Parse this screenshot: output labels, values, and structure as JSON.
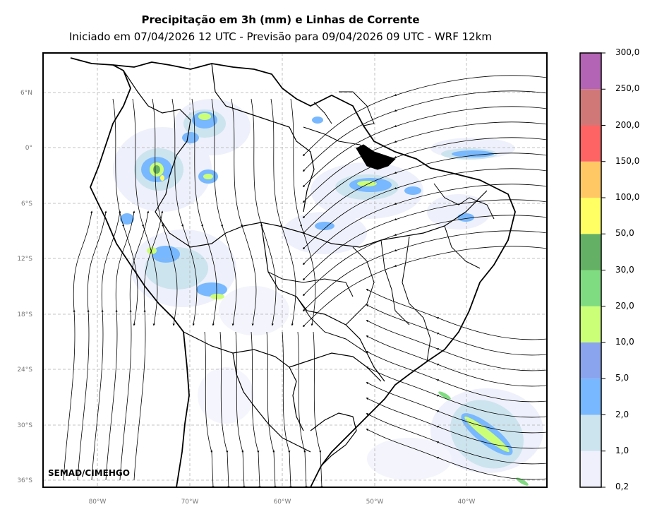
{
  "header": {
    "title": "Precipitação em 3h (mm) e Linhas de Corrente",
    "subtitle": "Iniciado em 07/04/2026 12 UTC - Previsão para 09/04/2026 09 UTC - WRF 12km"
  },
  "map": {
    "lat_labels": [
      "6°N",
      "0°",
      "6°S",
      "12°S",
      "18°S",
      "24°S",
      "30°S",
      "36°S"
    ],
    "lon_labels": [
      "80°W",
      "70°W",
      "60°W",
      "50°W",
      "40°W"
    ],
    "grid": true,
    "credit": "SEMAD/CIMEHGO"
  },
  "colorbar": {
    "labels": [
      "0,2",
      "1,0",
      "2,0",
      "5,0",
      "10,0",
      "20,0",
      "30,0",
      "50,0",
      "100,0",
      "150,0",
      "200,0",
      "250,0",
      "300,0"
    ],
    "colors": [
      "#f0f0fc",
      "#cce4ee",
      "#78b8ff",
      "#8aa4ee",
      "#ccff78",
      "#80dc80",
      "#64b064",
      "#ffff64",
      "#ffc864",
      "#ff6464",
      "#d07878",
      "#b464b4"
    ]
  }
}
